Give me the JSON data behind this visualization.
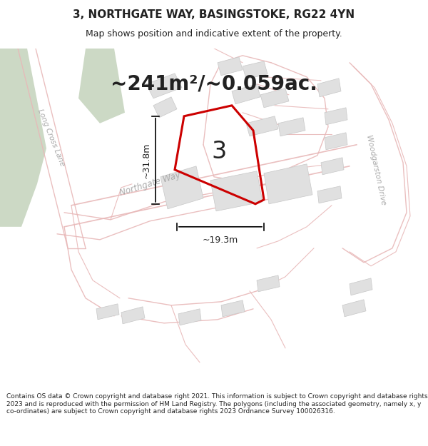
{
  "title": "3, NORTHGATE WAY, BASINGSTOKE, RG22 4YN",
  "subtitle": "Map shows position and indicative extent of the property.",
  "area_text": "~241m²/~0.059ac.",
  "dim_vertical": "~31.8m",
  "dim_horizontal": "~19.3m",
  "number_label": "3",
  "footer": "Contains OS data © Crown copyright and database right 2021. This information is subject to Crown copyright and database rights 2023 and is reproduced with the permission of HM Land Registry. The polygons (including the associated geometry, namely x, y co-ordinates) are subject to Crown copyright and database rights 2023 Ordnance Survey 100026316.",
  "bg_color": "#f5f5f3",
  "road_color": "#e8b8b8",
  "road_fill": "#f0d8d8",
  "green_color": "#ccd9c5",
  "building_fill": "#e0e0e0",
  "building_edge": "#c8c8c8",
  "highlight_color": "#cc0000",
  "text_color": "#222222",
  "label_color": "#aaaaaa",
  "title_fontsize": 11,
  "subtitle_fontsize": 9,
  "footer_fontsize": 6.5,
  "area_fontsize": 20,
  "dim_fontsize": 9,
  "number_fontsize": 24
}
